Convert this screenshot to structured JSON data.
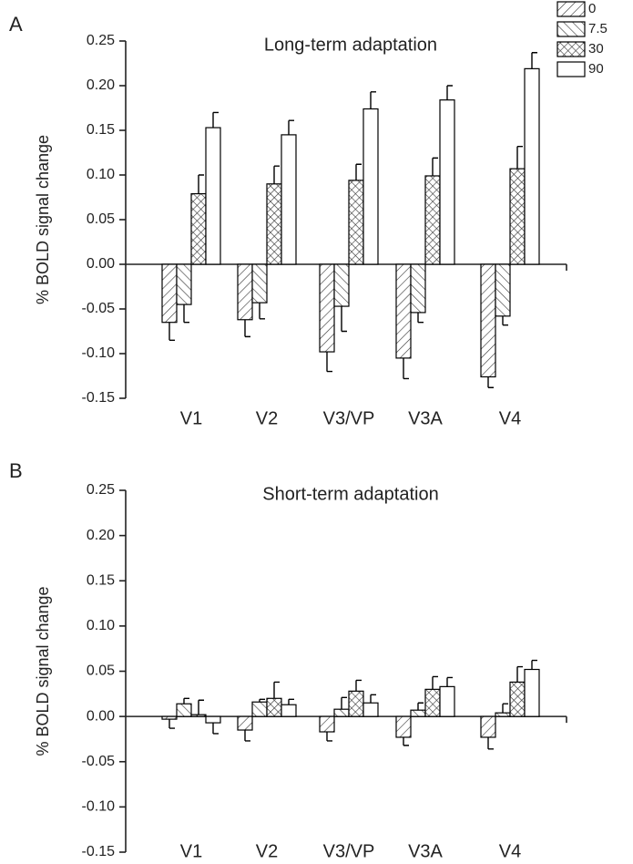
{
  "chart_data": [
    {
      "type": "bar",
      "panel_label": "A",
      "title": "Long-term adaptation",
      "y_label": "% BOLD signal change",
      "categories": [
        "V1",
        "V2",
        "V3/VP",
        "V3A",
        "V4"
      ],
      "series": [
        {
          "name": "0",
          "pattern": "diagonal-up",
          "color": "#000000",
          "values": [
            -0.065,
            -0.062,
            -0.098,
            -0.105,
            -0.126
          ],
          "errors": [
            0.02,
            0.019,
            0.022,
            0.023,
            0.012
          ]
        },
        {
          "name": "7.5",
          "pattern": "diagonal-down",
          "color": "#000000",
          "values": [
            -0.045,
            -0.043,
            -0.047,
            -0.054,
            -0.058
          ],
          "errors": [
            0.02,
            0.018,
            0.028,
            0.011,
            0.01
          ]
        },
        {
          "name": "30",
          "pattern": "crosshatch",
          "color": "#000000",
          "values": [
            0.079,
            0.09,
            0.094,
            0.099,
            0.107
          ],
          "errors": [
            0.021,
            0.02,
            0.018,
            0.02,
            0.025
          ]
        },
        {
          "name": "90",
          "pattern": "none",
          "color": "#000000",
          "values": [
            0.153,
            0.145,
            0.174,
            0.184,
            0.219
          ],
          "errors": [
            0.017,
            0.016,
            0.019,
            0.016,
            0.018
          ]
        }
      ],
      "ylim": [
        -0.15,
        0.25
      ],
      "yticks": [
        -0.15,
        {
          "value": -0.1,
          "label": "-0.10"
        },
        -0.05,
        {
          "value": 0,
          "label": "0.00"
        },
        0.05,
        {
          "value": 0.1,
          "label": "0.10"
        },
        0.15,
        {
          "value": 0.2,
          "label": "0.20"
        },
        0.25
      ],
      "legend": "top-right"
    },
    {
      "type": "bar",
      "panel_label": "B",
      "title": "Short-term adaptation",
      "y_label": "% BOLD signal change",
      "categories": [
        "V1",
        "V2",
        "V3/VP",
        "V3A",
        "V4"
      ],
      "series": [
        {
          "pattern": "diagonal-up",
          "color": "#000000",
          "values": [
            -0.003,
            -0.015,
            -0.017,
            -0.023,
            -0.023
          ],
          "errors": [
            0.01,
            0.012,
            0.01,
            0.009,
            0.013
          ]
        },
        {
          "pattern": "diagonal-down",
          "color": "#000000",
          "values": [
            0.014,
            0.016,
            0.008,
            0.007,
            0.004
          ],
          "errors": [
            0.006,
            0.003,
            0.013,
            0.008,
            0.01
          ]
        },
        {
          "pattern": "crosshatch",
          "color": "#000000",
          "values": [
            0.002,
            0.02,
            0.028,
            0.03,
            0.038
          ],
          "errors": [
            0.016,
            0.018,
            0.012,
            0.014,
            0.017
          ]
        },
        {
          "pattern": "none",
          "color": "#000000",
          "values": [
            -0.007,
            0.013,
            0.015,
            0.033,
            0.052
          ],
          "errors": [
            0.012,
            0.006,
            0.009,
            0.01,
            0.01
          ]
        }
      ],
      "ylim": [
        -0.15,
        0.25
      ],
      "yticks": [
        -0.15,
        {
          "value": -0.1,
          "label": "-0.10"
        },
        -0.05,
        {
          "value": 0,
          "label": "0.00"
        },
        0.05,
        {
          "value": 0.1,
          "label": "0.10"
        },
        0.15,
        {
          "value": 0.2,
          "label": "0.20"
        },
        0.25
      ]
    }
  ]
}
